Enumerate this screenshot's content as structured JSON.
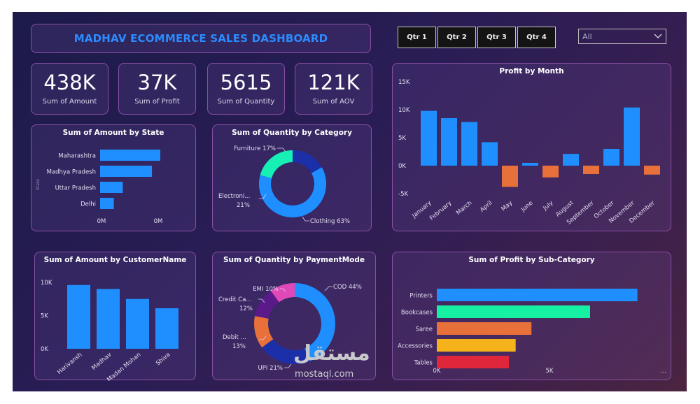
{
  "header": {
    "title": "MADHAV ECOMMERCE SALES DASHBOARD"
  },
  "quarters": [
    "Qtr 1",
    "Qtr 2",
    "Qtr 3",
    "Qtr 4"
  ],
  "filter": {
    "selected": "All"
  },
  "kpis": [
    {
      "value": "438K",
      "label": "Sum of Amount"
    },
    {
      "value": "37K",
      "label": "Sum of Profit"
    },
    {
      "value": "5615",
      "label": "Sum of Quantity"
    },
    {
      "value": "121K",
      "label": "Sum of AOV"
    }
  ],
  "watermark": {
    "arabic": "مستقل",
    "latin": "mostaql.com"
  },
  "chart_data": [
    {
      "id": "amount_by_state",
      "type": "bar",
      "orientation": "horizontal",
      "title": "Sum of Amount by State",
      "ylabel": "State",
      "categories": [
        "Maharashtra",
        "Madhya Pradesh",
        "Uttar Pradesh",
        "Delhi"
      ],
      "values": [
        101,
        87,
        38,
        23
      ],
      "xticks": [
        "0M",
        "0M"
      ],
      "color": "#1f8fff"
    },
    {
      "id": "quantity_by_category",
      "type": "pie",
      "donut": true,
      "title": "Sum of Quantity by Category",
      "categories": [
        "Clothing",
        "Electronics",
        "Furniture"
      ],
      "values": [
        63,
        21,
        17
      ],
      "labels": [
        "Clothing 63%",
        "Electroni...",
        "21%",
        "Furniture 17%"
      ],
      "colors": [
        "#1f8fff",
        "#16f0b4",
        "#1b2fa8"
      ]
    },
    {
      "id": "profit_by_month",
      "type": "bar",
      "title": "Profit by Month",
      "categories": [
        "January",
        "February",
        "March",
        "April",
        "May",
        "June",
        "July",
        "August",
        "September",
        "October",
        "November",
        "December"
      ],
      "values": [
        9.8,
        8.5,
        7.8,
        4.2,
        -3.8,
        0.5,
        -2.1,
        2.1,
        -1.5,
        3.0,
        10.4,
        -1.6
      ],
      "ylim": [
        -5,
        15
      ],
      "yticks": [
        "15K",
        "10K",
        "5K",
        "0K",
        "-5K"
      ],
      "colors": {
        "positive": "#1f8fff",
        "negative": "#e8703a"
      }
    },
    {
      "id": "amount_by_customer",
      "type": "bar",
      "title": "Sum of Amount by CustomerName",
      "categories": [
        "Harivansh",
        "Madhav",
        "Madan Mohan",
        "Shiva"
      ],
      "values": [
        9.6,
        9.0,
        7.5,
        6.1
      ],
      "ylim": [
        0,
        10
      ],
      "yticks": [
        "10K",
        "5K",
        "0K"
      ],
      "color": "#1f8fff"
    },
    {
      "id": "quantity_by_paymentmode",
      "type": "pie",
      "donut": true,
      "title": "Sum of Quantity by PaymentMode",
      "categories": [
        "COD",
        "UPI",
        "Debit Card",
        "Credit Card",
        "EMI"
      ],
      "values": [
        44,
        21,
        13,
        12,
        10
      ],
      "labels": [
        "COD 44%",
        "UPI 21%",
        "Debit ...",
        "13%",
        "Credit Ca...",
        "12%",
        "EMI 10%"
      ],
      "colors": [
        "#1f8fff",
        "#1b2fa8",
        "#e8703a",
        "#5a1a8a",
        "#e048b8"
      ]
    },
    {
      "id": "profit_by_subcategory",
      "type": "bar",
      "orientation": "horizontal",
      "title": "Sum of Profit by Sub-Category",
      "categories": [
        "Printers",
        "Bookcases",
        "Saree",
        "Accessories",
        "Tables"
      ],
      "values": [
        8.9,
        6.8,
        4.2,
        3.5,
        3.2
      ],
      "xlim": [
        0,
        10
      ],
      "xticks": [
        "0K",
        "5K",
        "..."
      ],
      "colors": [
        "#1f8fff",
        "#16f0a2",
        "#e8703a",
        "#f5b21b",
        "#e0263a"
      ]
    }
  ]
}
